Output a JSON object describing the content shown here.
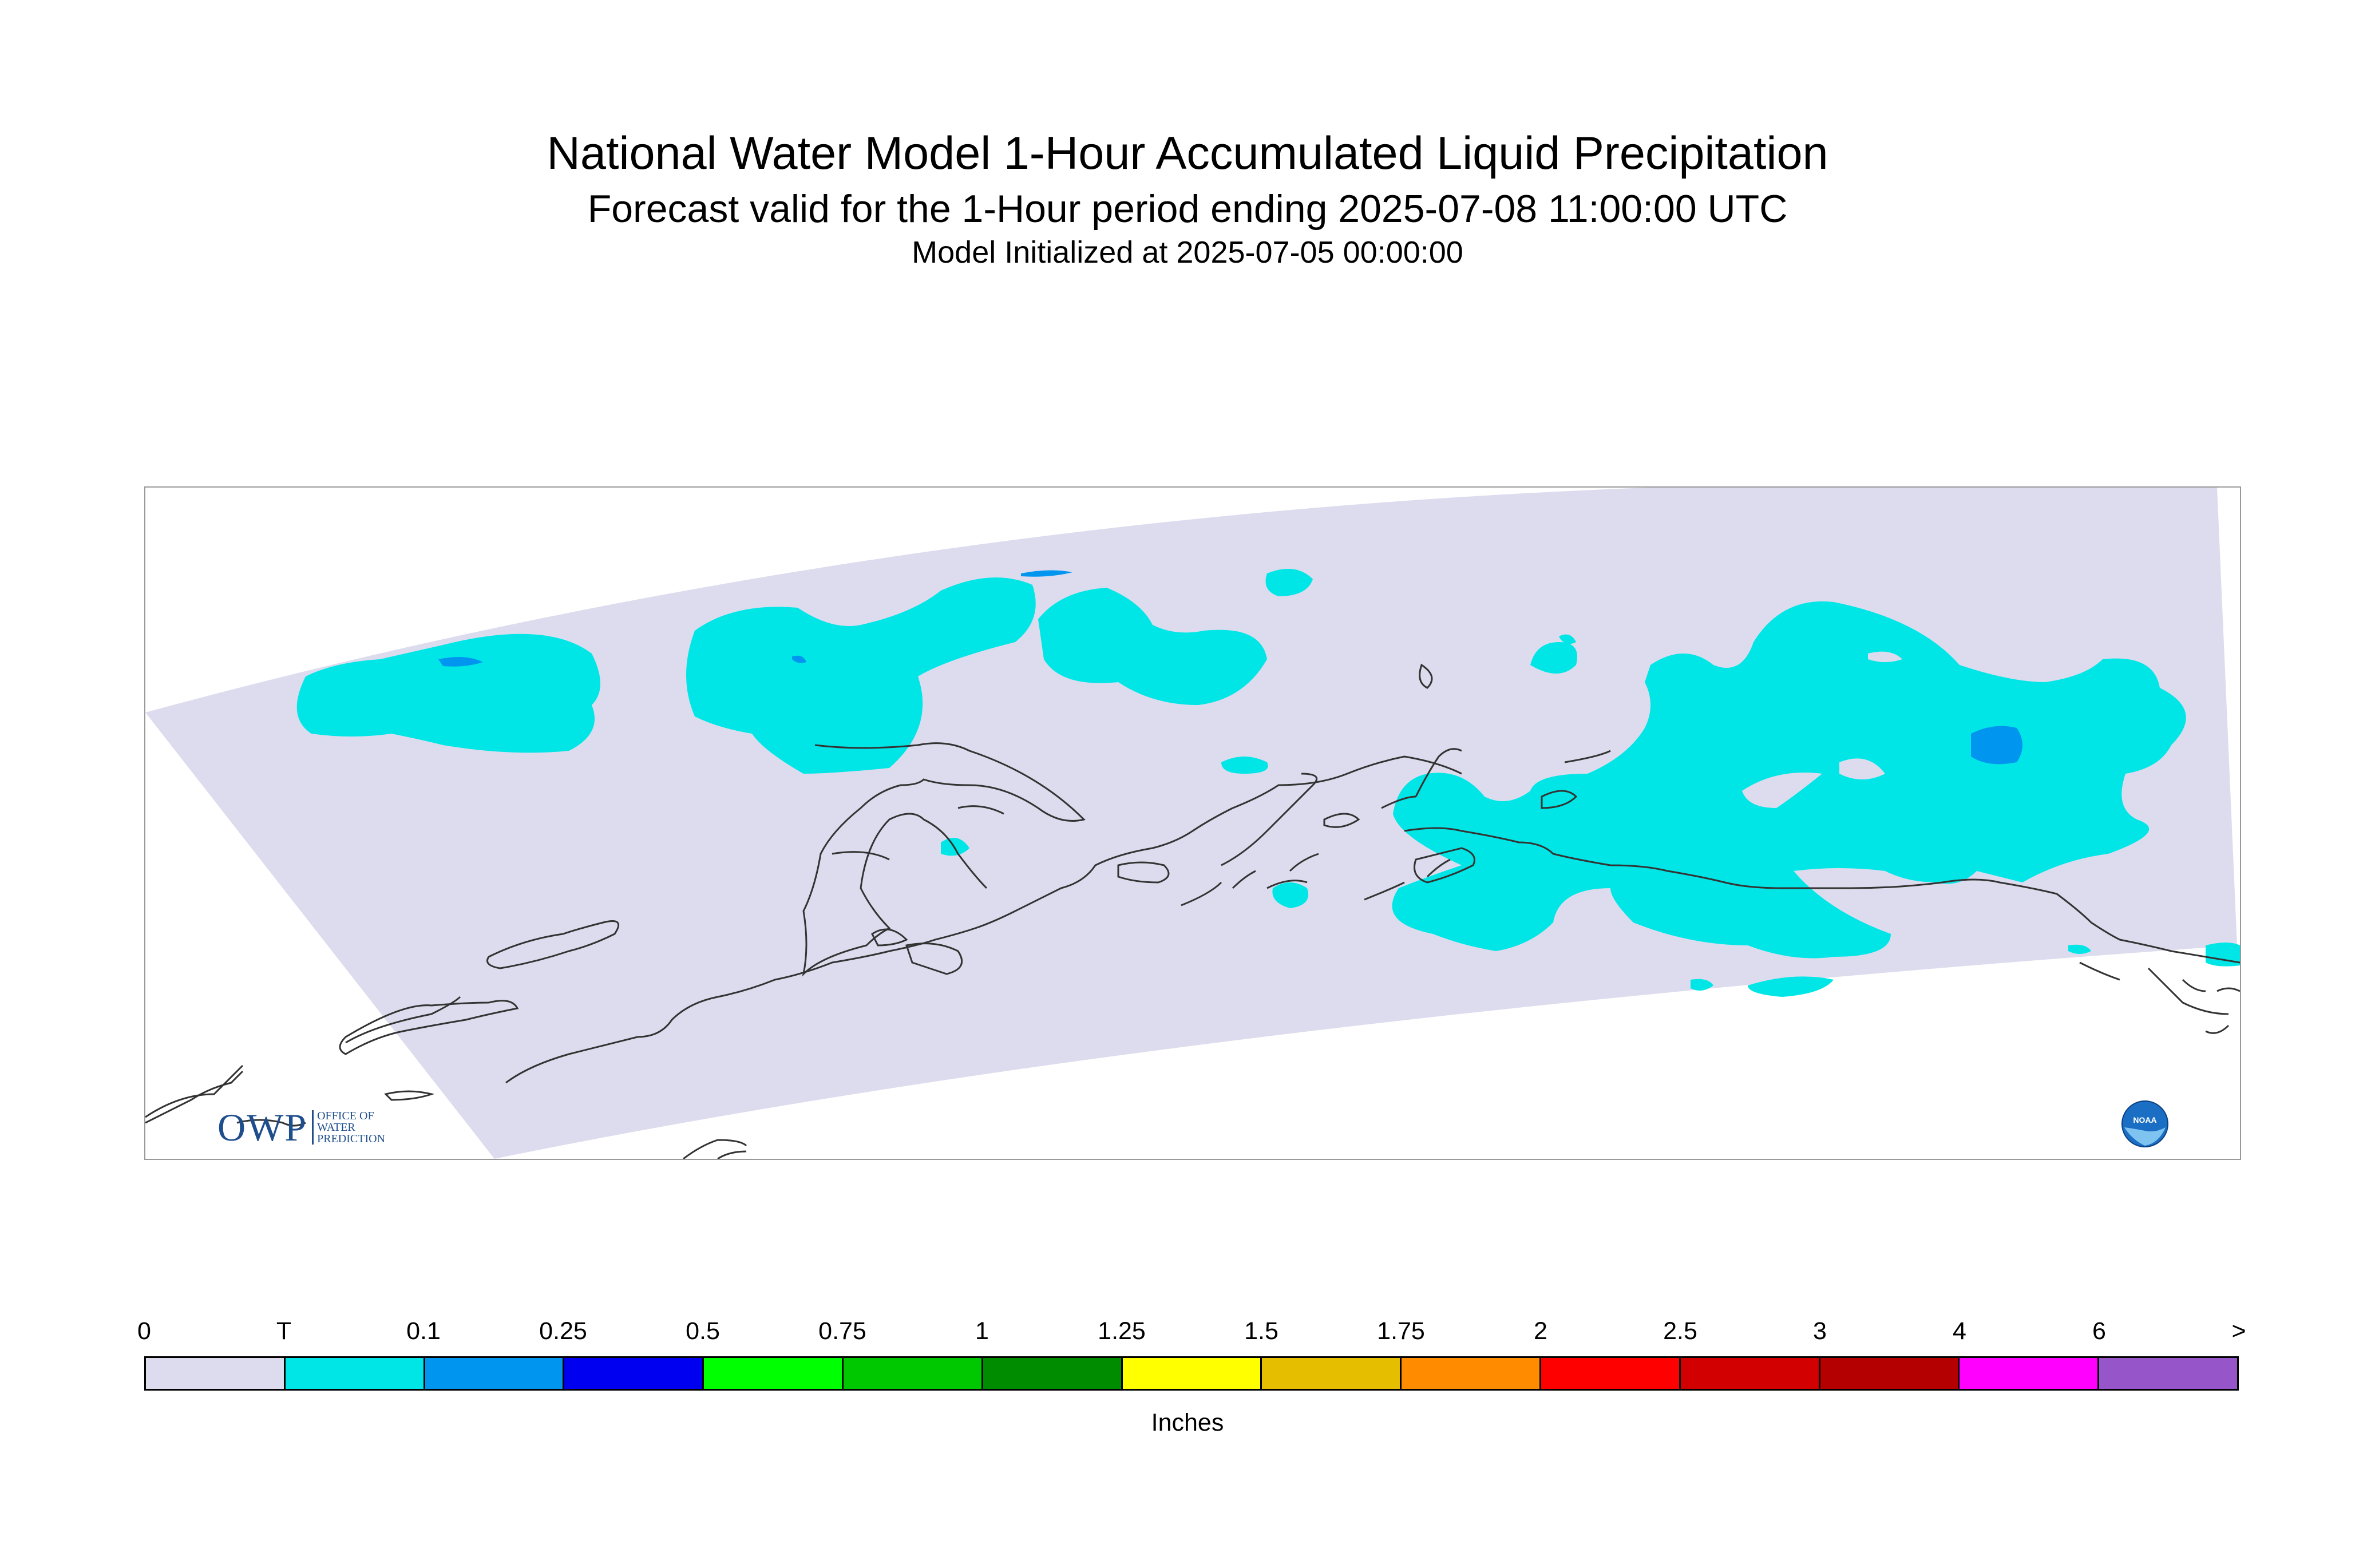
{
  "title": "National Water Model 1-Hour Accumulated Liquid Precipitation",
  "subtitle": "Forecast valid for the 1-Hour period ending 2025-07-08 11:00:00 UTC",
  "init": "Model Initialized at 2025-07-05 00:00:00",
  "legend": {
    "unit": "Inches",
    "ticks": [
      "0",
      "T",
      "0.1",
      "0.25",
      "0.5",
      "0.75",
      "1",
      "1.25",
      "1.5",
      "1.75",
      "2",
      "2.5",
      "3",
      "4",
      "6",
      ">"
    ],
    "colors": [
      "#dcdcee",
      "#00e6e6",
      "#0096f0",
      "#0000f0",
      "#00ff00",
      "#00c800",
      "#008c00",
      "#ffff00",
      "#e6be00",
      "#ff8c00",
      "#ff0000",
      "#d20000",
      "#b40000",
      "#ff00ff",
      "#9655c8"
    ]
  },
  "logos": {
    "owp_letters": "OWP",
    "owp_lines": [
      "OFFICE OF",
      "WATER",
      "PREDICTION"
    ],
    "noaa_text": "NOAA"
  },
  "colors": {
    "domain": "#dcdcee",
    "trace": "#00e6e6",
    "light": "#0096f0",
    "coast": "#333333"
  }
}
